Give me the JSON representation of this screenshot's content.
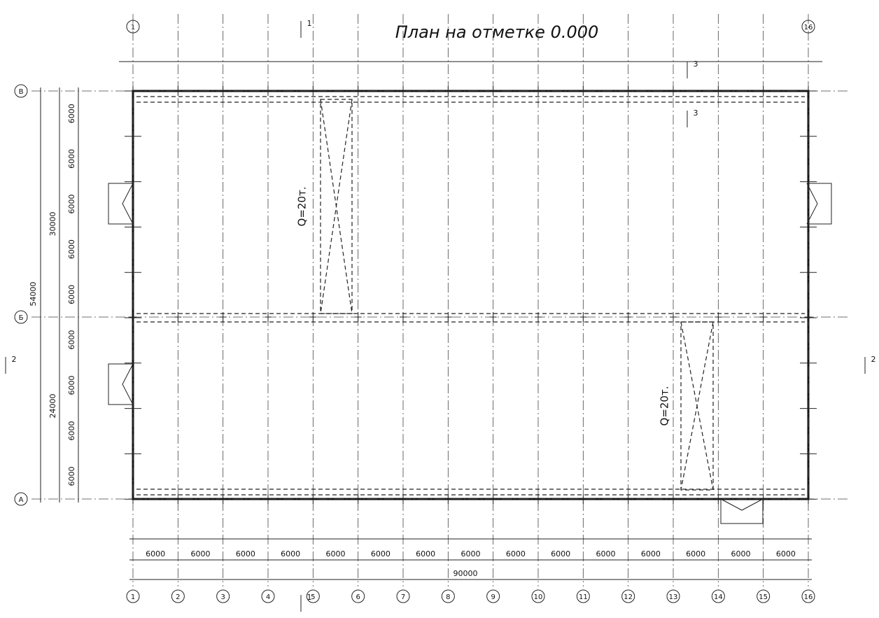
{
  "title": "План на отметке 0.000",
  "column_axes": [
    "1",
    "2",
    "3",
    "4",
    "5",
    "6",
    "7",
    "8",
    "9",
    "10",
    "11",
    "12",
    "13",
    "14",
    "15",
    "16"
  ],
  "row_axes": [
    "В",
    "Б",
    "А"
  ],
  "bottom_spans": [
    "6000",
    "6000",
    "6000",
    "6000",
    "6000",
    "6000",
    "6000",
    "6000",
    "6000",
    "6000",
    "6000",
    "6000",
    "6000",
    "6000",
    "6000"
  ],
  "total_length": "90000",
  "left_dims": {
    "total": "54000",
    "upper": "30000",
    "lower": "24000",
    "spans": [
      "6000",
      "6000",
      "6000",
      "6000",
      "6000",
      "6000",
      "6000",
      "6000",
      "6000"
    ]
  },
  "cranes": [
    "Q=20т.",
    "Q=20т."
  ],
  "section_marks": [
    "1",
    "1",
    "2",
    "2",
    "3",
    "3"
  ]
}
